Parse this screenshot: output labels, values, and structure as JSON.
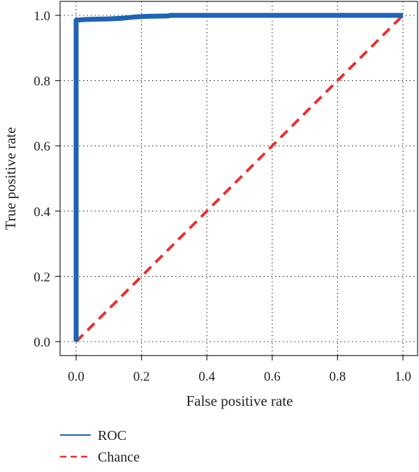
{
  "chart_data": {
    "type": "line",
    "title": "",
    "xlabel": "False positive rate",
    "ylabel": "True positive rate",
    "xlim": [
      0,
      1
    ],
    "ylim": [
      0,
      1
    ],
    "x_ticks": [
      0.0,
      0.2,
      0.4,
      0.6,
      0.8,
      1.0
    ],
    "y_ticks": [
      0.0,
      0.2,
      0.4,
      0.6,
      0.8,
      1.0
    ],
    "x_tick_labels": [
      "0.0",
      "0.2",
      "0.4",
      "0.6",
      "0.8",
      "1.0"
    ],
    "y_tick_labels": [
      "0.0",
      "0.2",
      "0.4",
      "0.6",
      "0.8",
      "1.0"
    ],
    "grid": true,
    "grid_style": "dotted",
    "legend_placement": "bottom-left, below plot",
    "series": [
      {
        "name": "ROC",
        "color": "#1f63b5",
        "style": "solid",
        "points": [
          [
            0.0,
            0.0
          ],
          [
            0.0,
            0.985
          ],
          [
            0.02,
            0.987
          ],
          [
            0.05,
            0.988
          ],
          [
            0.1,
            0.989
          ],
          [
            0.14,
            0.991
          ],
          [
            0.18,
            0.995
          ],
          [
            0.22,
            0.997
          ],
          [
            0.28,
            0.998
          ],
          [
            0.29,
            1.0
          ],
          [
            1.0,
            1.0
          ]
        ]
      },
      {
        "name": "Chance",
        "color": "#e8312e",
        "style": "dashed",
        "points": [
          [
            0.0,
            0.0
          ],
          [
            1.0,
            1.0
          ]
        ]
      }
    ]
  }
}
